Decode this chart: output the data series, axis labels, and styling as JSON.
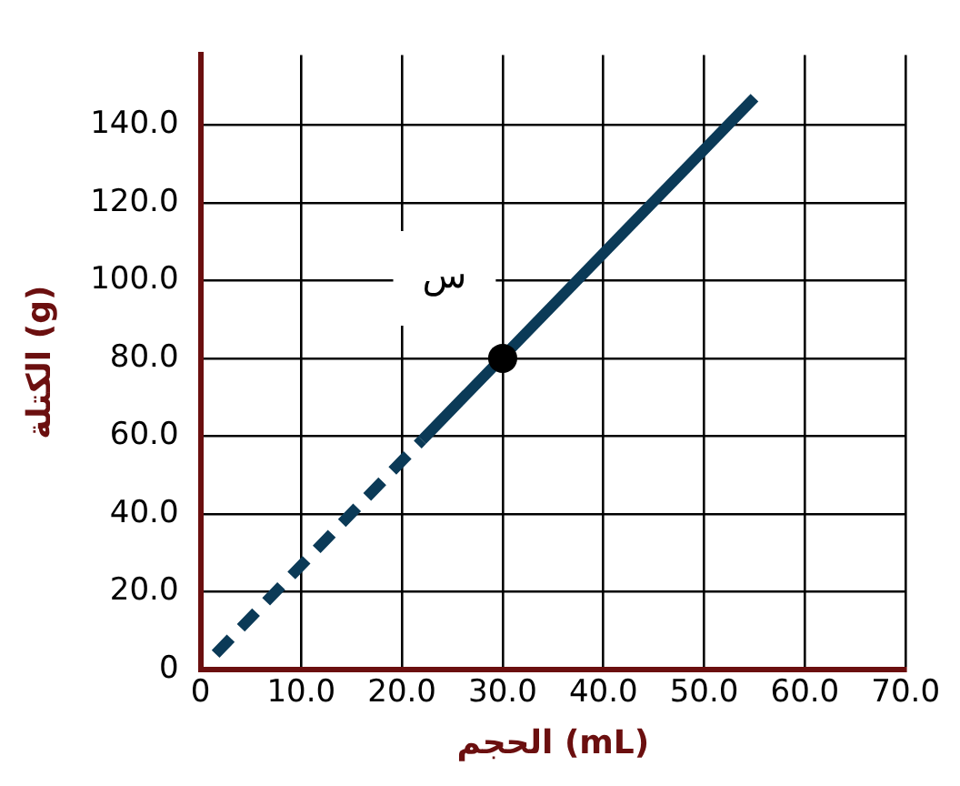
{
  "chart_data": {
    "type": "line",
    "xlabel": "الحجم (mL)",
    "ylabel": "الكتلة (g)",
    "xlim": [
      0,
      70
    ],
    "ylim": [
      0,
      158
    ],
    "xticks": [
      0,
      {
        "value": 10,
        "label": "10.0"
      },
      {
        "value": 20,
        "label": "20.0"
      },
      {
        "value": 30,
        "label": "30.0"
      },
      {
        "value": 40,
        "label": "40.0"
      },
      {
        "value": 50,
        "label": "50.0"
      },
      {
        "value": 60,
        "label": "60.0"
      },
      {
        "value": 70,
        "label": "70.0"
      }
    ],
    "yticks": [
      0,
      {
        "value": 20,
        "label": "20.0"
      },
      {
        "value": 40,
        "label": "40.0"
      },
      {
        "value": 60,
        "label": "60.0"
      },
      {
        "value": 80,
        "label": "80.0"
      },
      {
        "value": 100,
        "label": "100.0"
      },
      {
        "value": 120,
        "label": "120.0"
      },
      {
        "value": 140,
        "label": "140.0"
      }
    ],
    "grid": true,
    "legend": false,
    "annotations": [
      {
        "text": "س",
        "x": 30,
        "y": 80
      }
    ],
    "series": [
      {
        "x": [
          1.5,
          22
        ],
        "values": [
          4,
          59
        ],
        "color": "#0b3a57",
        "line_style": "dashed",
        "marker": "none"
      },
      {
        "x": [
          22,
          55
        ],
        "values": [
          59,
          147
        ],
        "color": "#0b3a57",
        "line_style": "solid",
        "marker": "none"
      },
      {
        "type": "scatter",
        "x": [
          30
        ],
        "values": [
          80
        ],
        "color": "#000000",
        "marker": "circle"
      }
    ]
  }
}
